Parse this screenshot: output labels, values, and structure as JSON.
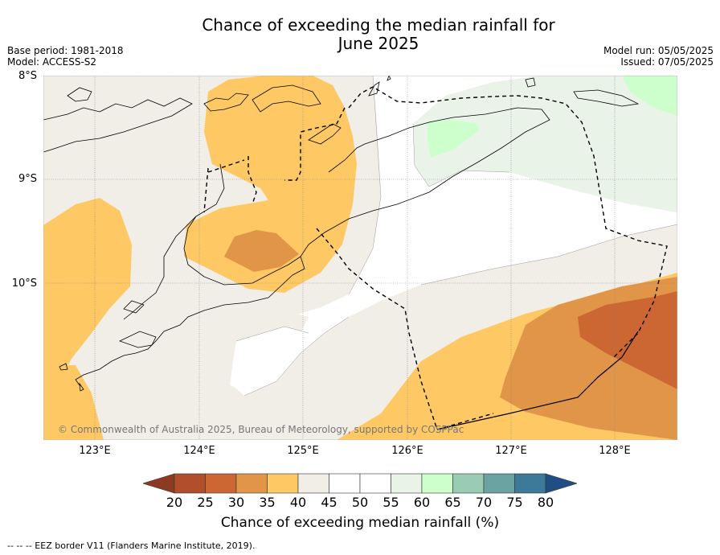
{
  "title_line1": "Chance of exceeding the median rainfall for",
  "title_line2": "June 2025",
  "meta_left": {
    "base_period": "Base period: 1981-2018",
    "model": "Model: ACCESS-S2"
  },
  "meta_right": {
    "model_run": "Model run: 05/05/2025",
    "issued": "Issued: 07/05/2025"
  },
  "lat_labels": [
    "8°S",
    "9°S",
    "10°S"
  ],
  "lon_labels": [
    "123°E",
    "124°E",
    "125°E",
    "126°E",
    "127°E",
    "128°E"
  ],
  "copyright": "© Commonwealth of Australia 2025, Bureau of Meteorology, supported by COSPPac",
  "colorbar": {
    "ticks": [
      "20",
      "25",
      "30",
      "35",
      "40",
      "45",
      "50",
      "55",
      "60",
      "65",
      "70",
      "75",
      "80"
    ],
    "label": "Chance of exceeding median rainfall (%)",
    "colors": [
      "#b14f2c",
      "#cc6633",
      "#e09548",
      "#fec965",
      "#f1ede7",
      "#ffffff",
      "#ffffff",
      "#e9f3e8",
      "#ccffcc",
      "#99ccb3",
      "#6ba3a3",
      "#3d7a99"
    ],
    "under_color": "#8c3a22",
    "over_color": "#1f4e85"
  },
  "footnote": "--  --  -- EEZ border V11 (Flanders Marine Institute, 2019)."
}
